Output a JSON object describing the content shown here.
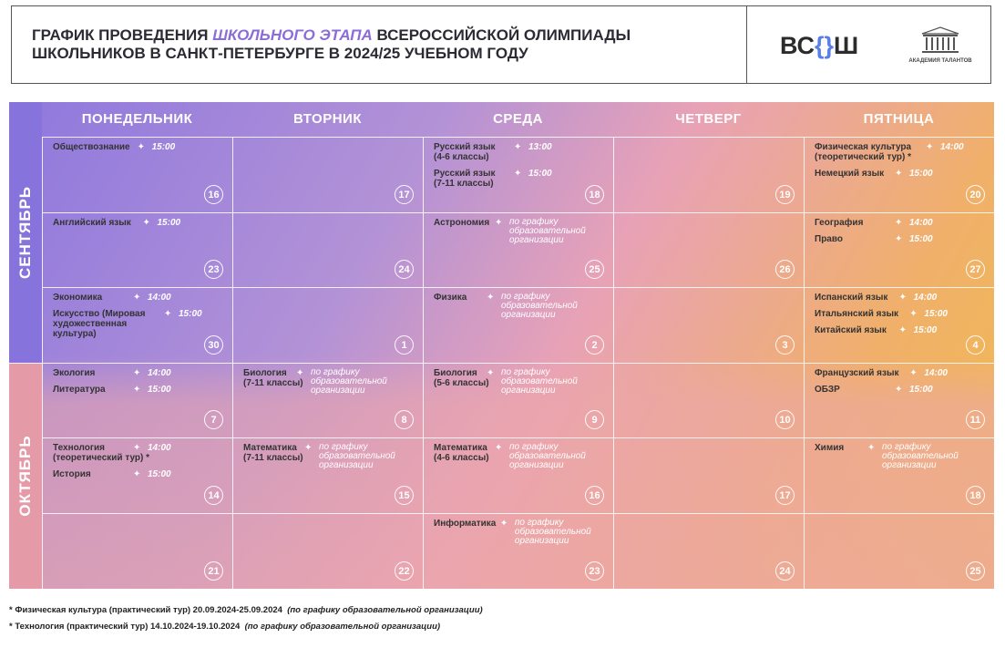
{
  "header": {
    "title_part1": "График проведения ",
    "title_highlight": "школьного этапа",
    "title_part2": " Всероссийской олимпиады школьников в Санкт-Петербурге в 2024/25 учебном году",
    "logo_vsosh": "ВС",
    "logo_vsosh_bracket_open": "{",
    "logo_vsosh_bracket_close": "}",
    "logo_vsosh_end": "Ш",
    "logo_academy": "АКАДЕМИЯ ТАЛАНТОВ"
  },
  "days": [
    "ПОНЕДЕЛЬНИК",
    "ВТОРНИК",
    "СРЕДА",
    "ЧЕТВЕРГ",
    "ПЯТНИЦА"
  ],
  "months": [
    "СЕНТЯБРЬ",
    "ОКТЯБРЬ"
  ],
  "weeks": [
    {
      "cells": [
        {
          "date": "16",
          "events": [
            {
              "name": "Обществознание",
              "time": "15:00"
            }
          ]
        },
        {
          "date": "17",
          "events": []
        },
        {
          "date": "18",
          "events": [
            {
              "name": "Русский язык\n(4-6 классы)",
              "time": "13:00"
            },
            {
              "name": "Русский язык\n(7-11 классы)",
              "time": "15:00"
            }
          ]
        },
        {
          "date": "19",
          "events": []
        },
        {
          "date": "20",
          "events": [
            {
              "name": "Физическая культура\n(теоретический тур) *",
              "time": "14:00"
            },
            {
              "name": "Немецкий язык",
              "time": "15:00"
            }
          ]
        }
      ]
    },
    {
      "cells": [
        {
          "date": "23",
          "events": [
            {
              "name": "Английский язык",
              "time": "15:00"
            }
          ]
        },
        {
          "date": "24",
          "events": []
        },
        {
          "date": "25",
          "events": [
            {
              "name": "Астрономия",
              "time": "по графику\nобразовательной\nорганизации"
            }
          ]
        },
        {
          "date": "26",
          "events": []
        },
        {
          "date": "27",
          "events": [
            {
              "name": "География",
              "time": "14:00"
            },
            {
              "name": "Право",
              "time": "15:00"
            }
          ]
        }
      ]
    },
    {
      "cells": [
        {
          "date": "30",
          "events": [
            {
              "name": "Экономика",
              "time": "14:00"
            },
            {
              "name": "Искусство (Мировая\nхудожественная\nкультура)",
              "time": "15:00"
            }
          ]
        },
        {
          "date": "1",
          "events": []
        },
        {
          "date": "2",
          "events": [
            {
              "name": "Физика",
              "time": "по графику\nобразовательной\nорганизации"
            }
          ]
        },
        {
          "date": "3",
          "events": []
        },
        {
          "date": "4",
          "events": [
            {
              "name": "Испанский язык",
              "time": "14:00"
            },
            {
              "name": "Итальянский язык",
              "time": "15:00"
            },
            {
              "name": "Китайский язык",
              "time": "15:00"
            }
          ]
        }
      ]
    },
    {
      "cells": [
        {
          "date": "7",
          "events": [
            {
              "name": "Экология",
              "time": "14:00"
            },
            {
              "name": "Литература",
              "time": "15:00"
            }
          ]
        },
        {
          "date": "8",
          "events": [
            {
              "name": "Биология\n(7-11 классы)",
              "time": "по графику\nобразовательной\nорганизации"
            }
          ]
        },
        {
          "date": "9",
          "events": [
            {
              "name": "Биология\n(5-6 классы)",
              "time": "по графику\nобразовательной\nорганизации"
            }
          ]
        },
        {
          "date": "10",
          "events": []
        },
        {
          "date": "11",
          "events": [
            {
              "name": "Французский язык",
              "time": "14:00"
            },
            {
              "name": "ОБЗР",
              "time": "15:00"
            }
          ]
        }
      ]
    },
    {
      "cells": [
        {
          "date": "14",
          "events": [
            {
              "name": "Технология\n(теоретический тур) *",
              "time": "14:00"
            },
            {
              "name": "История",
              "time": "15:00"
            }
          ]
        },
        {
          "date": "15",
          "events": [
            {
              "name": "Математика\n(7-11 классы)",
              "time": "по графику\nобразовательной\nорганизации"
            }
          ]
        },
        {
          "date": "16",
          "events": [
            {
              "name": "Математика\n(4-6 классы)",
              "time": "по графику\nобразовательной\nорганизации"
            }
          ]
        },
        {
          "date": "17",
          "events": []
        },
        {
          "date": "18",
          "events": [
            {
              "name": "Химия",
              "time": "по графику\nобразовательной\nорганизации"
            }
          ]
        }
      ]
    },
    {
      "cells": [
        {
          "date": "21",
          "events": []
        },
        {
          "date": "22",
          "events": []
        },
        {
          "date": "23",
          "events": [
            {
              "name": "Информатика",
              "time": "по графику\nобразовательной\nорганизации"
            }
          ]
        },
        {
          "date": "24",
          "events": []
        },
        {
          "date": "25",
          "events": []
        }
      ]
    }
  ],
  "footnotes": [
    {
      "text": "* Физическая культура (практический тур) 20.09.2024-25.09.2024",
      "note": "(по графику образовательной организации)"
    },
    {
      "text": "* Технология (практический тур) 14.10.2024-19.10.2024",
      "note": "(по графику образовательной организации)"
    }
  ]
}
